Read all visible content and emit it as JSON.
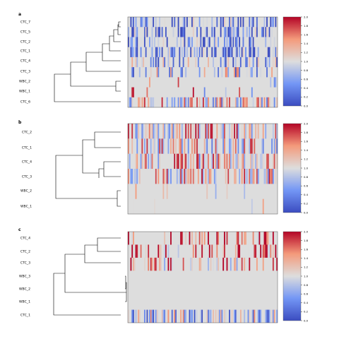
{
  "chart_data": [
    {
      "type": "heatmap",
      "panel_label": "a",
      "rows": [
        "CTC_7",
        "CTC_5",
        "CTC_2",
        "CTC_1",
        "CTC_4",
        "CTC_3",
        "WBC_2",
        "WBC_1",
        "CTC_6"
      ],
      "colorbar": {
        "min": 0.0,
        "max": 2.0,
        "ticks": [
          "0.0",
          "0.2",
          "0.4",
          "0.6",
          "0.8",
          "1.0",
          "1.2",
          "1.4",
          "1.6",
          "1.8",
          "2.0"
        ]
      },
      "neutral_value": 1.0,
      "colormap": [
        "#3b4cc0",
        "#dddddd",
        "#b40426"
      ]
    },
    {
      "type": "heatmap",
      "panel_label": "b",
      "rows": [
        "CTC_2",
        "CTC_1",
        "CTC_4",
        "CTC_3",
        "WBC_2",
        "WBC_1"
      ],
      "colorbar": {
        "min": 0.0,
        "max": 2.0,
        "ticks": [
          "0.0",
          "0.2",
          "0.4",
          "0.6",
          "0.8",
          "1.0",
          "1.2",
          "1.4",
          "1.6",
          "1.8",
          "2.0"
        ]
      },
      "neutral_value": 1.0,
      "colormap": [
        "#3b4cc0",
        "#dddddd",
        "#b40426"
      ]
    },
    {
      "type": "heatmap",
      "panel_label": "c",
      "rows": [
        "CTC_4",
        "CTC_2",
        "CTC_3",
        "WBC_3",
        "WBC_2",
        "WBC_1",
        "CTC_1"
      ],
      "colorbar": {
        "min": 0.0,
        "max": 2.0,
        "ticks": [
          "0.0",
          "0.2",
          "0.4",
          "0.6",
          "0.8",
          "1.0",
          "1.2",
          "1.4",
          "1.6",
          "1.8",
          "2.0"
        ]
      },
      "neutral_value": 1.0,
      "colormap": [
        "#3b4cc0",
        "#dddddd",
        "#b40426"
      ]
    }
  ]
}
